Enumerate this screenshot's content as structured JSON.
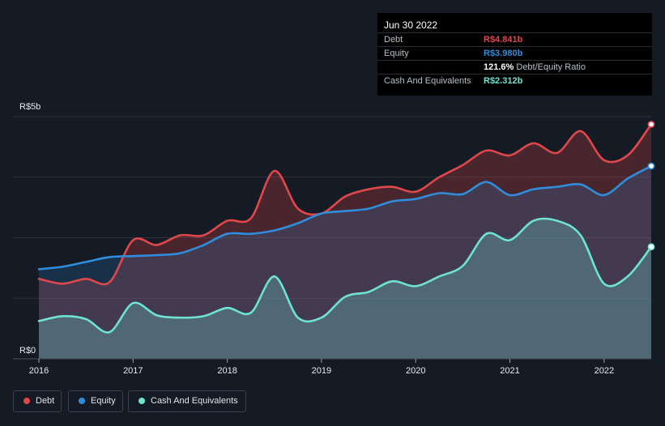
{
  "tooltip": {
    "date": "Jun 30 2022",
    "debt_label": "Debt",
    "debt_value": "R$4.841b",
    "equity_label": "Equity",
    "equity_value": "R$3.980b",
    "ratio_value": "121.6%",
    "ratio_label": "Debt/Equity Ratio",
    "cash_label": "Cash And Equivalents",
    "cash_value": "R$2.312b"
  },
  "legend": {
    "debt": "Debt",
    "equity": "Equity",
    "cash": "Cash And Equivalents"
  },
  "colors": {
    "background": "#151b24",
    "debt": "#e0474b",
    "equity": "#2f8ddc",
    "cash": "#6fe3d2",
    "grid": "#2d333d"
  },
  "chart_data": {
    "type": "area",
    "title": "",
    "xlabel": "",
    "ylabel": "",
    "ylim": [
      0,
      5
    ],
    "xlim": [
      2016.0,
      2022.5
    ],
    "y_tick_labels": [
      {
        "value": 0,
        "label": "R$0"
      },
      {
        "value": 5,
        "label": "R$5b"
      }
    ],
    "x_ticks": [
      2016,
      2017,
      2018,
      2019,
      2020,
      2021,
      2022
    ],
    "x_tick_labels": [
      "2016",
      "2017",
      "2018",
      "2019",
      "2020",
      "2021",
      "2022"
    ],
    "series": [
      {
        "name": "Debt",
        "color": "#e0474b",
        "points": [
          [
            2016.0,
            1.65
          ],
          [
            2016.25,
            1.55
          ],
          [
            2016.5,
            1.65
          ],
          [
            2016.75,
            1.58
          ],
          [
            2017.0,
            2.45
          ],
          [
            2017.25,
            2.35
          ],
          [
            2017.5,
            2.55
          ],
          [
            2017.75,
            2.55
          ],
          [
            2018.0,
            2.85
          ],
          [
            2018.25,
            2.9
          ],
          [
            2018.5,
            3.88
          ],
          [
            2018.75,
            3.1
          ],
          [
            2019.0,
            3.0
          ],
          [
            2019.25,
            3.35
          ],
          [
            2019.5,
            3.5
          ],
          [
            2019.75,
            3.55
          ],
          [
            2020.0,
            3.45
          ],
          [
            2020.25,
            3.75
          ],
          [
            2020.5,
            4.0
          ],
          [
            2020.75,
            4.3
          ],
          [
            2021.0,
            4.2
          ],
          [
            2021.25,
            4.45
          ],
          [
            2021.5,
            4.25
          ],
          [
            2021.75,
            4.7
          ],
          [
            2022.0,
            4.1
          ],
          [
            2022.25,
            4.2
          ],
          [
            2022.5,
            4.841
          ]
        ]
      },
      {
        "name": "Equity",
        "color": "#2f8ddc",
        "points": [
          [
            2016.0,
            1.85
          ],
          [
            2016.25,
            1.9
          ],
          [
            2016.5,
            2.0
          ],
          [
            2016.75,
            2.1
          ],
          [
            2017.0,
            2.12
          ],
          [
            2017.25,
            2.14
          ],
          [
            2017.5,
            2.18
          ],
          [
            2017.75,
            2.35
          ],
          [
            2018.0,
            2.58
          ],
          [
            2018.25,
            2.58
          ],
          [
            2018.5,
            2.65
          ],
          [
            2018.75,
            2.8
          ],
          [
            2019.0,
            3.0
          ],
          [
            2019.25,
            3.05
          ],
          [
            2019.5,
            3.1
          ],
          [
            2019.75,
            3.25
          ],
          [
            2020.0,
            3.3
          ],
          [
            2020.25,
            3.42
          ],
          [
            2020.5,
            3.4
          ],
          [
            2020.75,
            3.65
          ],
          [
            2021.0,
            3.38
          ],
          [
            2021.25,
            3.5
          ],
          [
            2021.5,
            3.55
          ],
          [
            2021.75,
            3.6
          ],
          [
            2022.0,
            3.38
          ],
          [
            2022.25,
            3.72
          ],
          [
            2022.5,
            3.98
          ]
        ]
      },
      {
        "name": "Cash And Equivalents",
        "color": "#6fe3d2",
        "points": [
          [
            2016.0,
            0.78
          ],
          [
            2016.25,
            0.88
          ],
          [
            2016.5,
            0.82
          ],
          [
            2016.75,
            0.55
          ],
          [
            2017.0,
            1.15
          ],
          [
            2017.25,
            0.9
          ],
          [
            2017.5,
            0.85
          ],
          [
            2017.75,
            0.88
          ],
          [
            2018.0,
            1.05
          ],
          [
            2018.25,
            0.95
          ],
          [
            2018.5,
            1.7
          ],
          [
            2018.75,
            0.85
          ],
          [
            2019.0,
            0.85
          ],
          [
            2019.25,
            1.28
          ],
          [
            2019.5,
            1.38
          ],
          [
            2019.75,
            1.6
          ],
          [
            2020.0,
            1.5
          ],
          [
            2020.25,
            1.7
          ],
          [
            2020.5,
            1.92
          ],
          [
            2020.75,
            2.58
          ],
          [
            2021.0,
            2.45
          ],
          [
            2021.25,
            2.85
          ],
          [
            2021.5,
            2.85
          ],
          [
            2021.75,
            2.55
          ],
          [
            2022.0,
            1.55
          ],
          [
            2022.25,
            1.7
          ],
          [
            2022.5,
            2.312
          ]
        ]
      }
    ]
  }
}
